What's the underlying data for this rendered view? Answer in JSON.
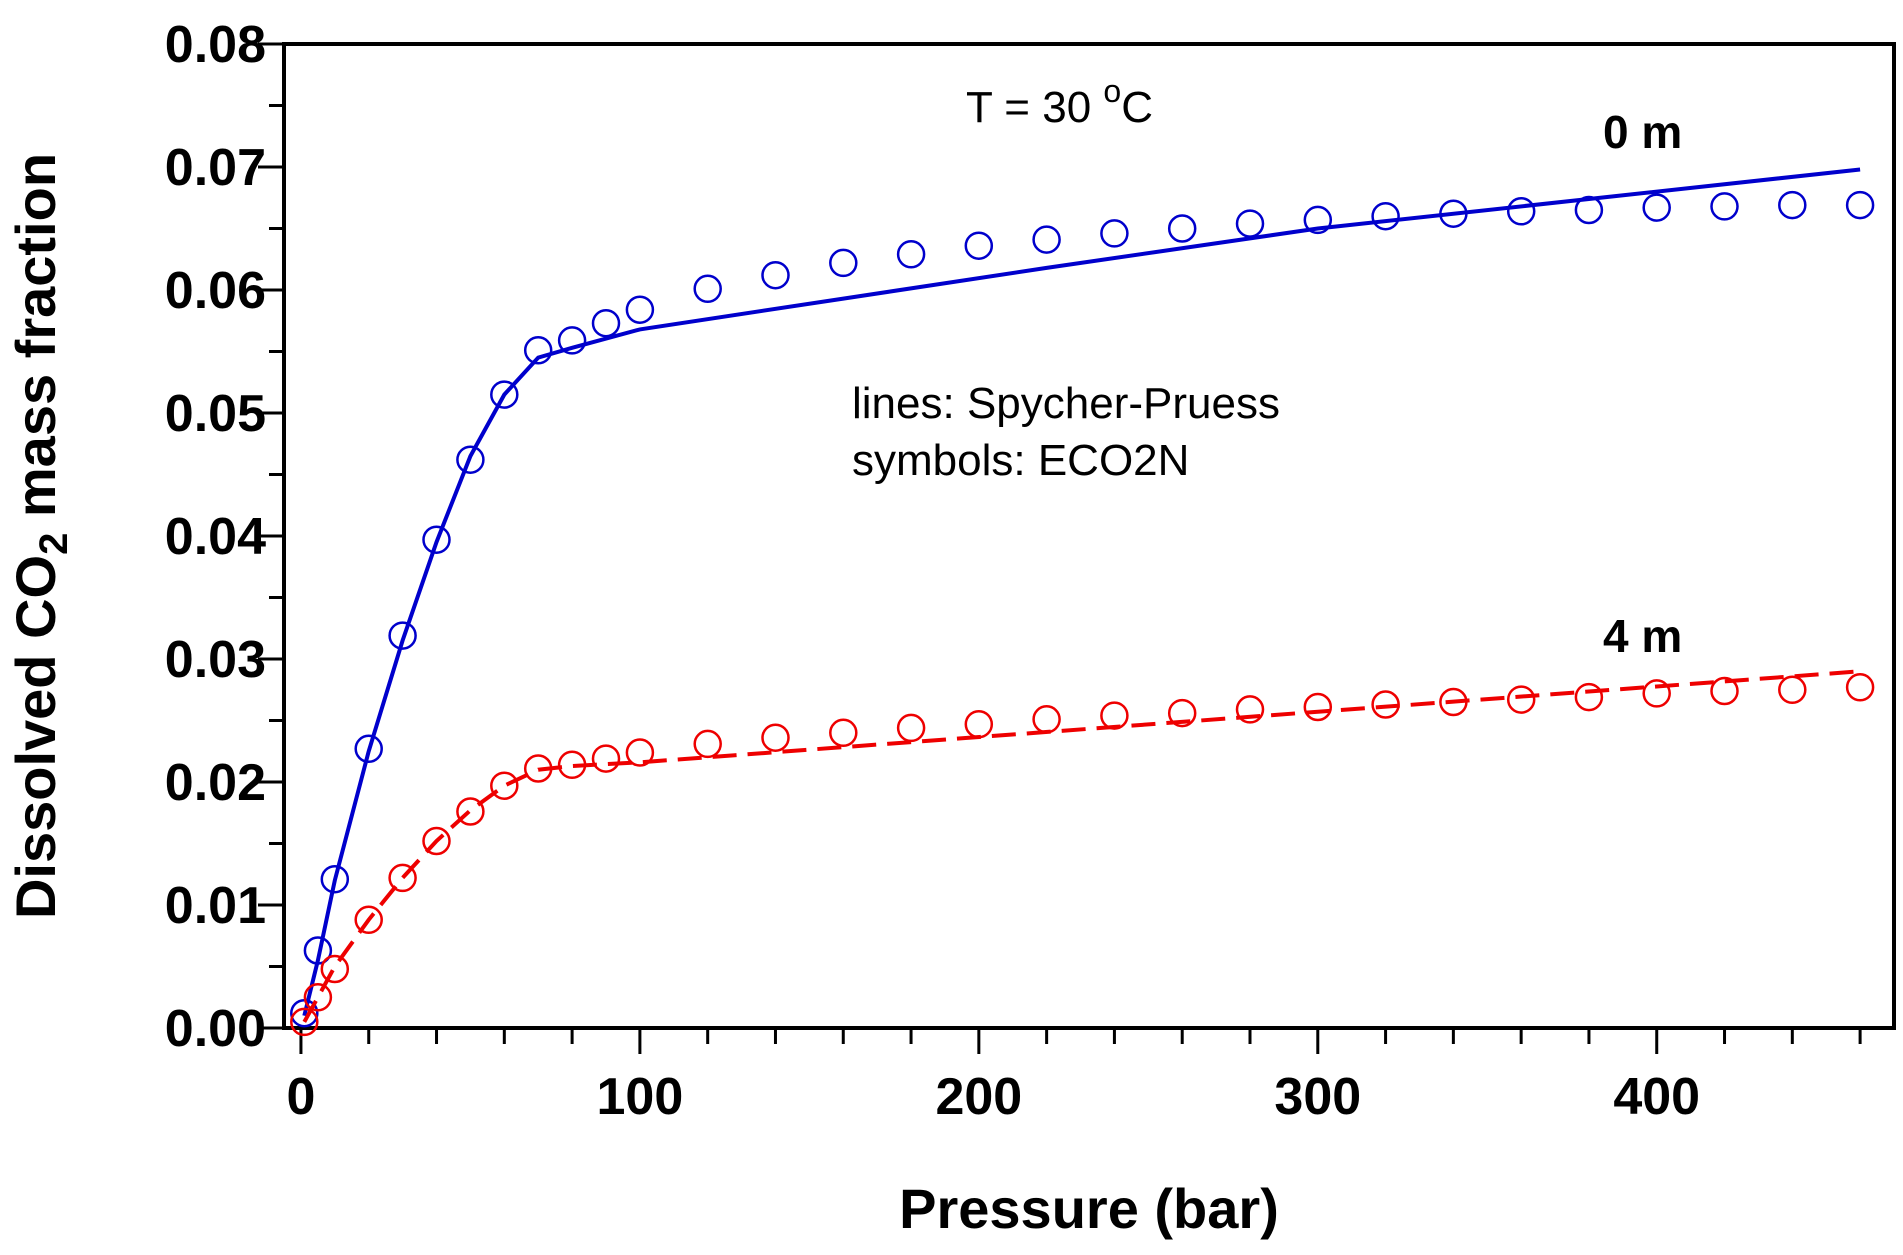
{
  "chart_data": {
    "type": "line",
    "title": "",
    "xlabel": "Pressure (bar)",
    "ylabel": {
      "pre": "Dissolved CO",
      "sub": "2",
      "post": " mass fraction"
    },
    "xlim": [
      -5,
      470
    ],
    "ylim": [
      0,
      0.08
    ],
    "x_ticks": [
      0,
      100,
      200,
      300,
      400
    ],
    "y_ticks": [
      "0.00",
      "0.01",
      "0.02",
      "0.03",
      "0.04",
      "0.05",
      "0.06",
      "0.07",
      "0.08"
    ],
    "grid": false,
    "annotations": {
      "temperature": {
        "pre": "T = 30 ",
        "sup": "o",
        "post": "C"
      },
      "legend_line1": "lines: Spycher-Pruess",
      "legend_line2": "symbols: ECO2N"
    },
    "series": [
      {
        "name": "0 m",
        "color": "#0000cc",
        "line_style": "solid",
        "line_x": [
          1,
          5,
          10,
          20,
          30,
          40,
          50,
          60,
          70,
          80,
          100,
          160,
          220,
          300,
          460
        ],
        "line_y": [
          0.001,
          0.0055,
          0.012,
          0.0225,
          0.0315,
          0.0395,
          0.0465,
          0.0515,
          0.0545,
          0.0553,
          0.0568,
          0.0593,
          0.0618,
          0.065,
          0.0698
        ],
        "points_x": [
          1,
          5,
          10,
          20,
          30,
          40,
          50,
          60,
          70,
          80,
          90,
          100,
          120,
          140,
          160,
          180,
          200,
          220,
          240,
          260,
          280,
          300,
          320,
          340,
          360,
          380,
          400,
          420,
          440,
          460
        ],
        "points_y": [
          0.0012,
          0.0063,
          0.0121,
          0.0227,
          0.0319,
          0.0397,
          0.0462,
          0.0515,
          0.0551,
          0.0559,
          0.0573,
          0.0584,
          0.0601,
          0.0612,
          0.0622,
          0.0629,
          0.0636,
          0.0641,
          0.0646,
          0.065,
          0.0654,
          0.0657,
          0.066,
          0.0662,
          0.0664,
          0.0665,
          0.0667,
          0.0668,
          0.0669,
          0.0669
        ]
      },
      {
        "name": "4 m",
        "color": "#ee0000",
        "line_style": "dashed",
        "line_x": [
          1,
          5,
          10,
          20,
          30,
          40,
          50,
          60,
          70,
          80,
          100,
          460
        ],
        "line_y": [
          0.0005,
          0.0025,
          0.005,
          0.0088,
          0.0122,
          0.0152,
          0.0177,
          0.0197,
          0.021,
          0.0213,
          0.0216,
          0.029
        ],
        "points_x": [
          1,
          5,
          10,
          20,
          30,
          40,
          50,
          60,
          70,
          80,
          90,
          100,
          120,
          140,
          160,
          180,
          200,
          220,
          240,
          260,
          280,
          300,
          320,
          340,
          360,
          380,
          400,
          420,
          440,
          460
        ],
        "points_y": [
          0.0005,
          0.0025,
          0.0048,
          0.0088,
          0.0122,
          0.0152,
          0.0176,
          0.0197,
          0.0211,
          0.0214,
          0.0219,
          0.0224,
          0.0231,
          0.0236,
          0.024,
          0.0244,
          0.0247,
          0.0251,
          0.0254,
          0.0256,
          0.0259,
          0.0261,
          0.0263,
          0.0265,
          0.0267,
          0.0269,
          0.0272,
          0.0274,
          0.0275,
          0.0277
        ]
      }
    ]
  }
}
